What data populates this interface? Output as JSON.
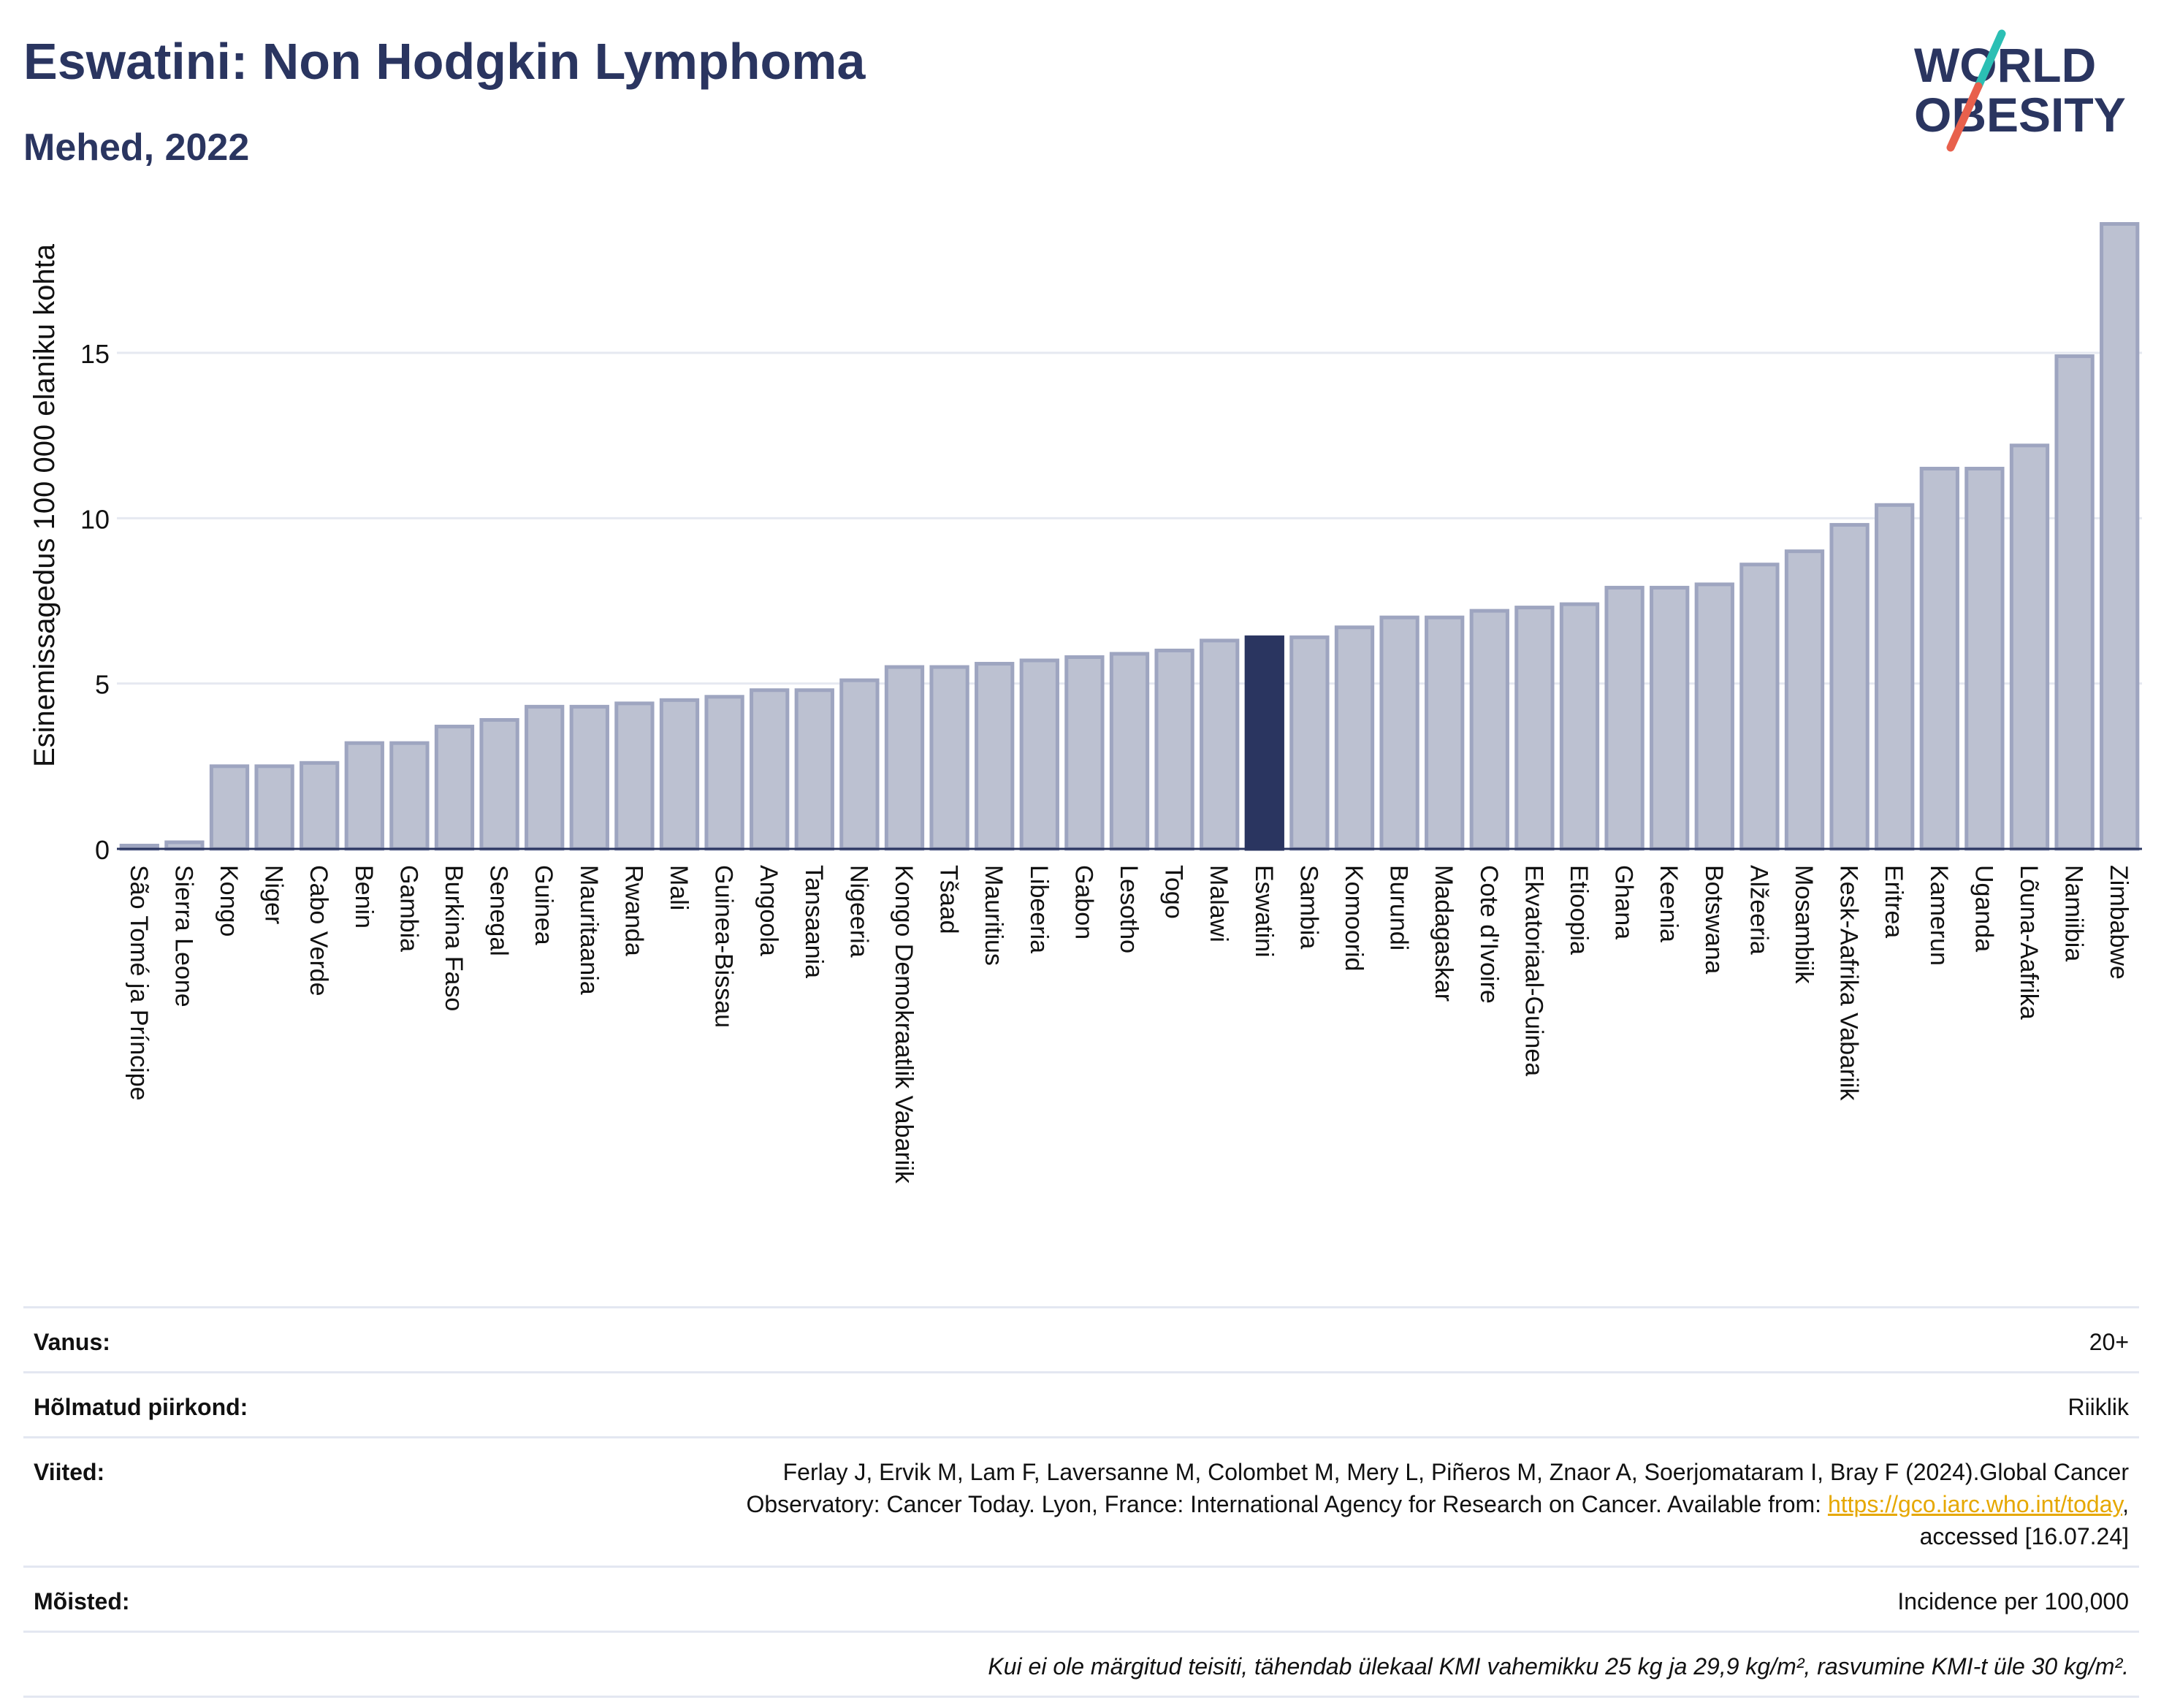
{
  "header": {
    "title": "Eswatini: Non Hodgkin Lymphoma",
    "subtitle": "Mehed, 2022"
  },
  "logo": {
    "line1": "WORLD",
    "line2": "OBESITY",
    "accent_teal": "#2bbfb4",
    "accent_red": "#e8604c"
  },
  "colors": {
    "bar": "#bcc1d1",
    "bar_stroke": "#9ea5c0",
    "highlight": "#2a3560",
    "grid": "#e6e9f1",
    "axis": "#2a3560"
  },
  "chart_data": {
    "type": "bar",
    "title": "Eswatini: Non Hodgkin Lymphoma",
    "subtitle": "Mehed, 2022",
    "xlabel": "",
    "ylabel": "Esinemissagedus 100 000 elaniku kohta",
    "ylim": [
      0,
      19
    ],
    "yticks": [
      0,
      5,
      10,
      15
    ],
    "grid": true,
    "highlight": "Eswatini",
    "categories": [
      "São Tomé ja Príncipe",
      "Sierra Leone",
      "Kongo",
      "Niger",
      "Cabo Verde",
      "Benin",
      "Gambia",
      "Burkina Faso",
      "Senegal",
      "Guinea",
      "Mauritaania",
      "Rwanda",
      "Mali",
      "Guinea-Bissau",
      "Angoola",
      "Tansaania",
      "Nigeeria",
      "Kongo Demokraatlik Vabariik",
      "Tšaad",
      "Mauritius",
      "Libeeria",
      "Gabon",
      "Lesotho",
      "Togo",
      "Malawi",
      "Eswatini",
      "Sambia",
      "Komoorid",
      "Burundi",
      "Madagaskar",
      "Cote d'Ivoire",
      "Ekvatoriaal-Guinea",
      "Etioopia",
      "Ghana",
      "Keenia",
      "Botswana",
      "Alžeeria",
      "Mosambiik",
      "Kesk-Aafrika Vabariik",
      "Eritrea",
      "Kamerun",
      "Uganda",
      "Lõuna-Aafrika",
      "Namiibia",
      "Zimbabwe"
    ],
    "values": [
      0.1,
      0.2,
      2.5,
      2.5,
      2.6,
      3.2,
      3.2,
      3.7,
      3.9,
      4.3,
      4.3,
      4.4,
      4.5,
      4.6,
      4.8,
      4.8,
      5.1,
      5.5,
      5.5,
      5.6,
      5.7,
      5.8,
      5.9,
      6.0,
      6.3,
      6.4,
      6.4,
      6.7,
      7.0,
      7.0,
      7.2,
      7.3,
      7.4,
      7.9,
      7.9,
      8.0,
      8.6,
      9.0,
      9.8,
      10.4,
      11.5,
      11.5,
      12.2,
      14.9,
      18.9
    ]
  },
  "info": {
    "age_label": "Vanus:",
    "age_value": "20+",
    "area_label": "Hõlmatud piirkond:",
    "area_value": "Riiklik",
    "refs_label": "Viited:",
    "refs_line1": "Ferlay J, Ervik M, Lam F, Laversanne M, Colombet M, Mery L, Piñeros M, Znaor A, Soerjomataram I, Bray F (2024).Global Cancer",
    "refs_line2_pre": "Observatory: Cancer Today. Lyon, France: International Agency for Research on Cancer. Available from: ",
    "refs_link": "https://gco.iarc.who.int/today",
    "refs_line2_post": ",",
    "refs_line3": "accessed [16.07.24]",
    "defs_label": "Mõisted:",
    "defs_value": "Incidence per 100,000",
    "note": "Kui ei ole märgitud teisiti, tähendab ülekaal KMI vahemikku 25 kg ja 29,9 kg/m², rasvumine KMI-t üle 30 kg/m²."
  }
}
